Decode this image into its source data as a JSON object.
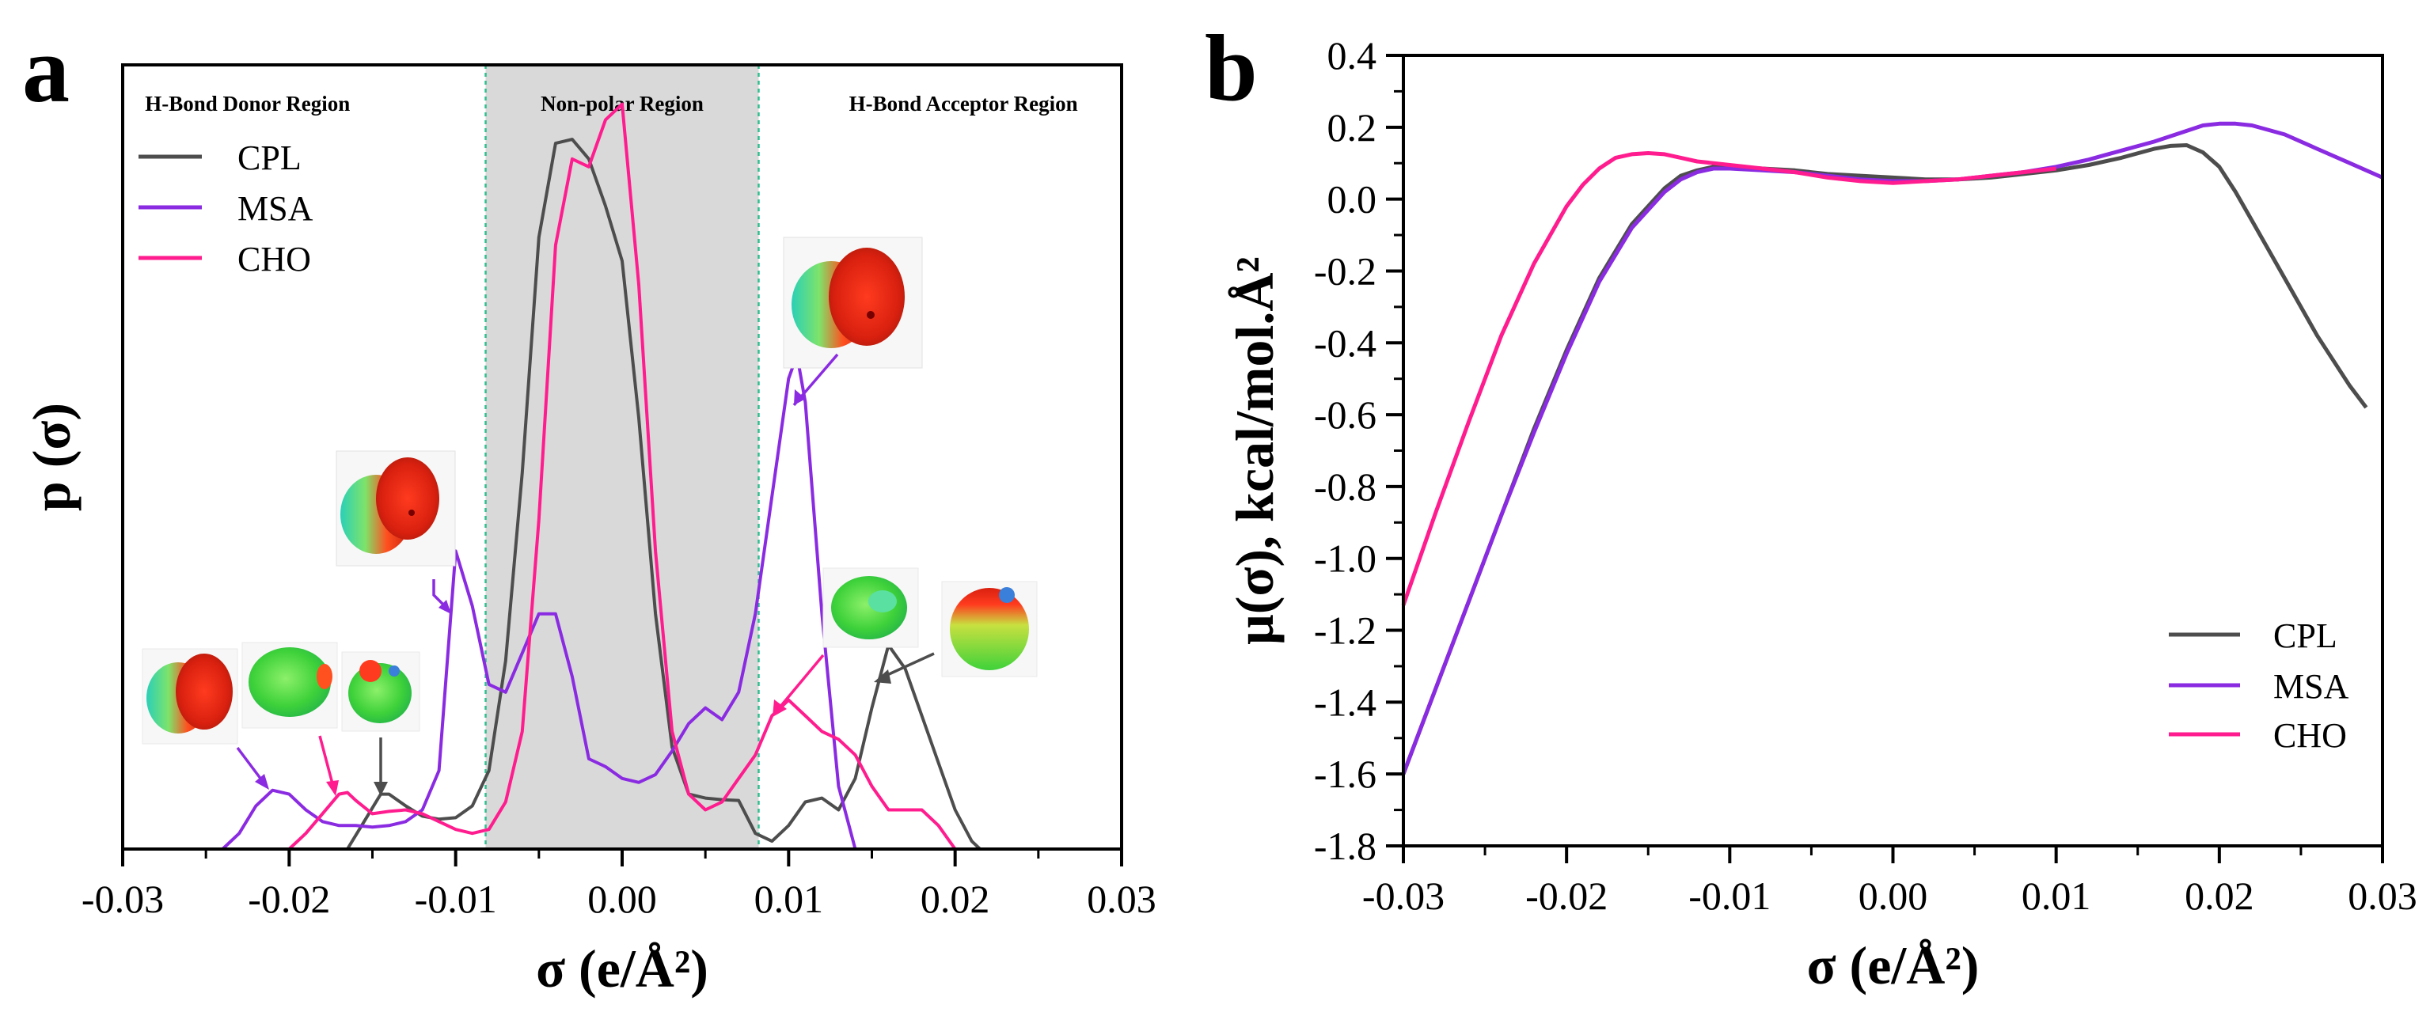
{
  "figure": {
    "panel_a_letter": "a",
    "panel_b_letter": "b"
  },
  "chart_data": [
    {
      "type": "line",
      "panel": "a",
      "xlabel": "σ (e/Å²)",
      "ylabel": "p (σ)",
      "xlim": [
        -0.03,
        0.03
      ],
      "ylim": [
        0,
        1
      ],
      "x_ticks": [
        "-0.03",
        "-0.02",
        "-0.01",
        "0.00",
        "0.01",
        "0.02",
        "0.03"
      ],
      "y_ticks_shown": false,
      "grid": false,
      "legend_position": "top-left",
      "shaded_region": [
        -0.0082,
        0.0082
      ],
      "regions": [
        {
          "label": "H-Bond Donor Region",
          "x": -0.0225
        },
        {
          "label": "Non-polar Region",
          "x": 0.0
        },
        {
          "label": "H-Bond Acceptor Region",
          "x": 0.0205
        }
      ],
      "colors": {
        "CPL": "#4d4d4d",
        "MSA": "#8a2be2",
        "CHO": "#ff1c8e"
      },
      "series": [
        {
          "name": "CPL",
          "color": "#4d4d4d",
          "x": [
            -0.0165,
            -0.0155,
            -0.0145,
            -0.014,
            -0.013,
            -0.012,
            -0.011,
            -0.01,
            -0.009,
            -0.008,
            -0.007,
            -0.006,
            -0.005,
            -0.004,
            -0.003,
            -0.002,
            -0.001,
            0.0,
            0.001,
            0.002,
            0.003,
            0.004,
            0.005,
            0.006,
            0.007,
            0.008,
            0.009,
            0.01,
            0.011,
            0.012,
            0.013,
            0.014,
            0.015,
            0.016,
            0.017,
            0.018,
            0.019,
            0.02,
            0.021,
            0.0215
          ],
          "y": [
            0.0,
            0.035,
            0.07,
            0.07,
            0.055,
            0.042,
            0.038,
            0.04,
            0.055,
            0.1,
            0.24,
            0.48,
            0.78,
            0.9,
            0.905,
            0.88,
            0.82,
            0.75,
            0.55,
            0.3,
            0.13,
            0.07,
            0.065,
            0.063,
            0.062,
            0.02,
            0.01,
            0.03,
            0.06,
            0.065,
            0.05,
            0.09,
            0.18,
            0.26,
            0.23,
            0.17,
            0.11,
            0.05,
            0.01,
            0.0
          ]
        },
        {
          "name": "MSA",
          "color": "#8a2be2",
          "x": [
            -0.024,
            -0.023,
            -0.022,
            -0.021,
            -0.02,
            -0.019,
            -0.018,
            -0.017,
            -0.016,
            -0.015,
            -0.014,
            -0.013,
            -0.012,
            -0.011,
            -0.01,
            -0.009,
            -0.008,
            -0.007,
            -0.006,
            -0.005,
            -0.004,
            -0.003,
            -0.002,
            -0.001,
            0.0,
            0.001,
            0.002,
            0.003,
            0.004,
            0.005,
            0.006,
            0.007,
            0.008,
            0.009,
            0.01,
            0.0105,
            0.011,
            0.012,
            0.013,
            0.014
          ],
          "y": [
            0.0,
            0.02,
            0.055,
            0.075,
            0.07,
            0.05,
            0.035,
            0.03,
            0.03,
            0.028,
            0.03,
            0.035,
            0.05,
            0.1,
            0.38,
            0.31,
            0.21,
            0.2,
            0.25,
            0.3,
            0.3,
            0.22,
            0.115,
            0.105,
            0.09,
            0.085,
            0.095,
            0.125,
            0.16,
            0.18,
            0.165,
            0.2,
            0.3,
            0.45,
            0.6,
            0.63,
            0.57,
            0.3,
            0.08,
            0.0
          ]
        },
        {
          "name": "CHO",
          "color": "#ff1c8e",
          "x": [
            -0.02,
            -0.019,
            -0.018,
            -0.017,
            -0.0165,
            -0.016,
            -0.015,
            -0.014,
            -0.013,
            -0.012,
            -0.011,
            -0.01,
            -0.009,
            -0.008,
            -0.007,
            -0.006,
            -0.005,
            -0.004,
            -0.003,
            -0.002,
            -0.001,
            0.0,
            0.001,
            0.002,
            0.003,
            0.004,
            0.005,
            0.006,
            0.007,
            0.008,
            0.009,
            0.01,
            0.011,
            0.012,
            0.013,
            0.014,
            0.015,
            0.016,
            0.017,
            0.018,
            0.019,
            0.02
          ],
          "y": [
            0.0,
            0.02,
            0.045,
            0.07,
            0.072,
            0.062,
            0.045,
            0.048,
            0.05,
            0.045,
            0.035,
            0.025,
            0.02,
            0.025,
            0.06,
            0.15,
            0.42,
            0.77,
            0.88,
            0.87,
            0.93,
            0.95,
            0.72,
            0.38,
            0.15,
            0.07,
            0.05,
            0.06,
            0.09,
            0.12,
            0.17,
            0.19,
            0.17,
            0.15,
            0.14,
            0.12,
            0.08,
            0.05,
            0.05,
            0.05,
            0.03,
            0.0
          ]
        }
      ]
    },
    {
      "type": "line",
      "panel": "b",
      "xlabel": "σ (e/Å²)",
      "ylabel": "μ(σ), kcal/mol.Å²",
      "xlim": [
        -0.03,
        0.03
      ],
      "ylim": [
        -1.8,
        0.4
      ],
      "x_ticks": [
        "-0.03",
        "-0.02",
        "-0.01",
        "0.00",
        "0.01",
        "0.02",
        "0.03"
      ],
      "y_ticks": [
        "0.4",
        "0.2",
        "0.0",
        "-0.2",
        "-0.4",
        "-0.6",
        "-0.8",
        "-1.0",
        "-1.2",
        "-1.4",
        "-1.6",
        "-1.8"
      ],
      "grid": false,
      "legend_position": "bottom-right",
      "colors": {
        "CPL": "#4d4d4d",
        "MSA": "#8a2be2",
        "CHO": "#ff1c8e"
      },
      "series": [
        {
          "name": "CPL",
          "color": "#4d4d4d",
          "x": [
            -0.03,
            -0.028,
            -0.026,
            -0.024,
            -0.022,
            -0.02,
            -0.018,
            -0.016,
            -0.014,
            -0.013,
            -0.012,
            -0.011,
            -0.01,
            -0.008,
            -0.006,
            -0.004,
            -0.002,
            0.0,
            0.002,
            0.004,
            0.006,
            0.008,
            0.01,
            0.012,
            0.014,
            0.016,
            0.017,
            0.018,
            0.019,
            0.02,
            0.021,
            0.022,
            0.024,
            0.026,
            0.028,
            0.029
          ],
          "y": [
            -1.6,
            -1.36,
            -1.12,
            -0.88,
            -0.64,
            -0.42,
            -0.22,
            -0.07,
            0.03,
            0.065,
            0.08,
            0.09,
            0.09,
            0.085,
            0.08,
            0.07,
            0.065,
            0.06,
            0.055,
            0.055,
            0.06,
            0.07,
            0.08,
            0.095,
            0.115,
            0.14,
            0.148,
            0.15,
            0.13,
            0.09,
            0.02,
            -0.06,
            -0.22,
            -0.38,
            -0.52,
            -0.58
          ]
        },
        {
          "name": "MSA",
          "color": "#8a2be2",
          "x": [
            -0.03,
            -0.028,
            -0.026,
            -0.024,
            -0.022,
            -0.02,
            -0.018,
            -0.016,
            -0.014,
            -0.013,
            -0.012,
            -0.011,
            -0.01,
            -0.008,
            -0.006,
            -0.004,
            -0.002,
            0.0,
            0.002,
            0.004,
            0.006,
            0.008,
            0.01,
            0.012,
            0.014,
            0.016,
            0.018,
            0.019,
            0.02,
            0.021,
            0.022,
            0.024,
            0.026,
            0.028,
            0.03
          ],
          "y": [
            -1.6,
            -1.36,
            -1.12,
            -0.88,
            -0.65,
            -0.43,
            -0.23,
            -0.08,
            0.02,
            0.055,
            0.075,
            0.085,
            0.085,
            0.08,
            0.075,
            0.065,
            0.055,
            0.05,
            0.05,
            0.055,
            0.065,
            0.075,
            0.09,
            0.11,
            0.135,
            0.16,
            0.19,
            0.205,
            0.21,
            0.21,
            0.205,
            0.18,
            0.14,
            0.1,
            0.06
          ]
        },
        {
          "name": "CHO",
          "color": "#ff1c8e",
          "x": [
            -0.03,
            -0.028,
            -0.026,
            -0.024,
            -0.022,
            -0.02,
            -0.019,
            -0.018,
            -0.017,
            -0.016,
            -0.015,
            -0.014,
            -0.013,
            -0.012,
            -0.011,
            -0.01,
            -0.008,
            -0.006,
            -0.004,
            -0.002,
            0.0,
            0.002,
            0.004,
            0.006,
            0.008,
            0.01
          ],
          "y": [
            -1.13,
            -0.87,
            -0.62,
            -0.38,
            -0.18,
            -0.02,
            0.04,
            0.085,
            0.115,
            0.125,
            0.128,
            0.125,
            0.115,
            0.105,
            0.1,
            0.095,
            0.085,
            0.075,
            0.06,
            0.05,
            0.045,
            0.05,
            0.055,
            0.065,
            0.075,
            0.085
          ]
        }
      ]
    }
  ]
}
